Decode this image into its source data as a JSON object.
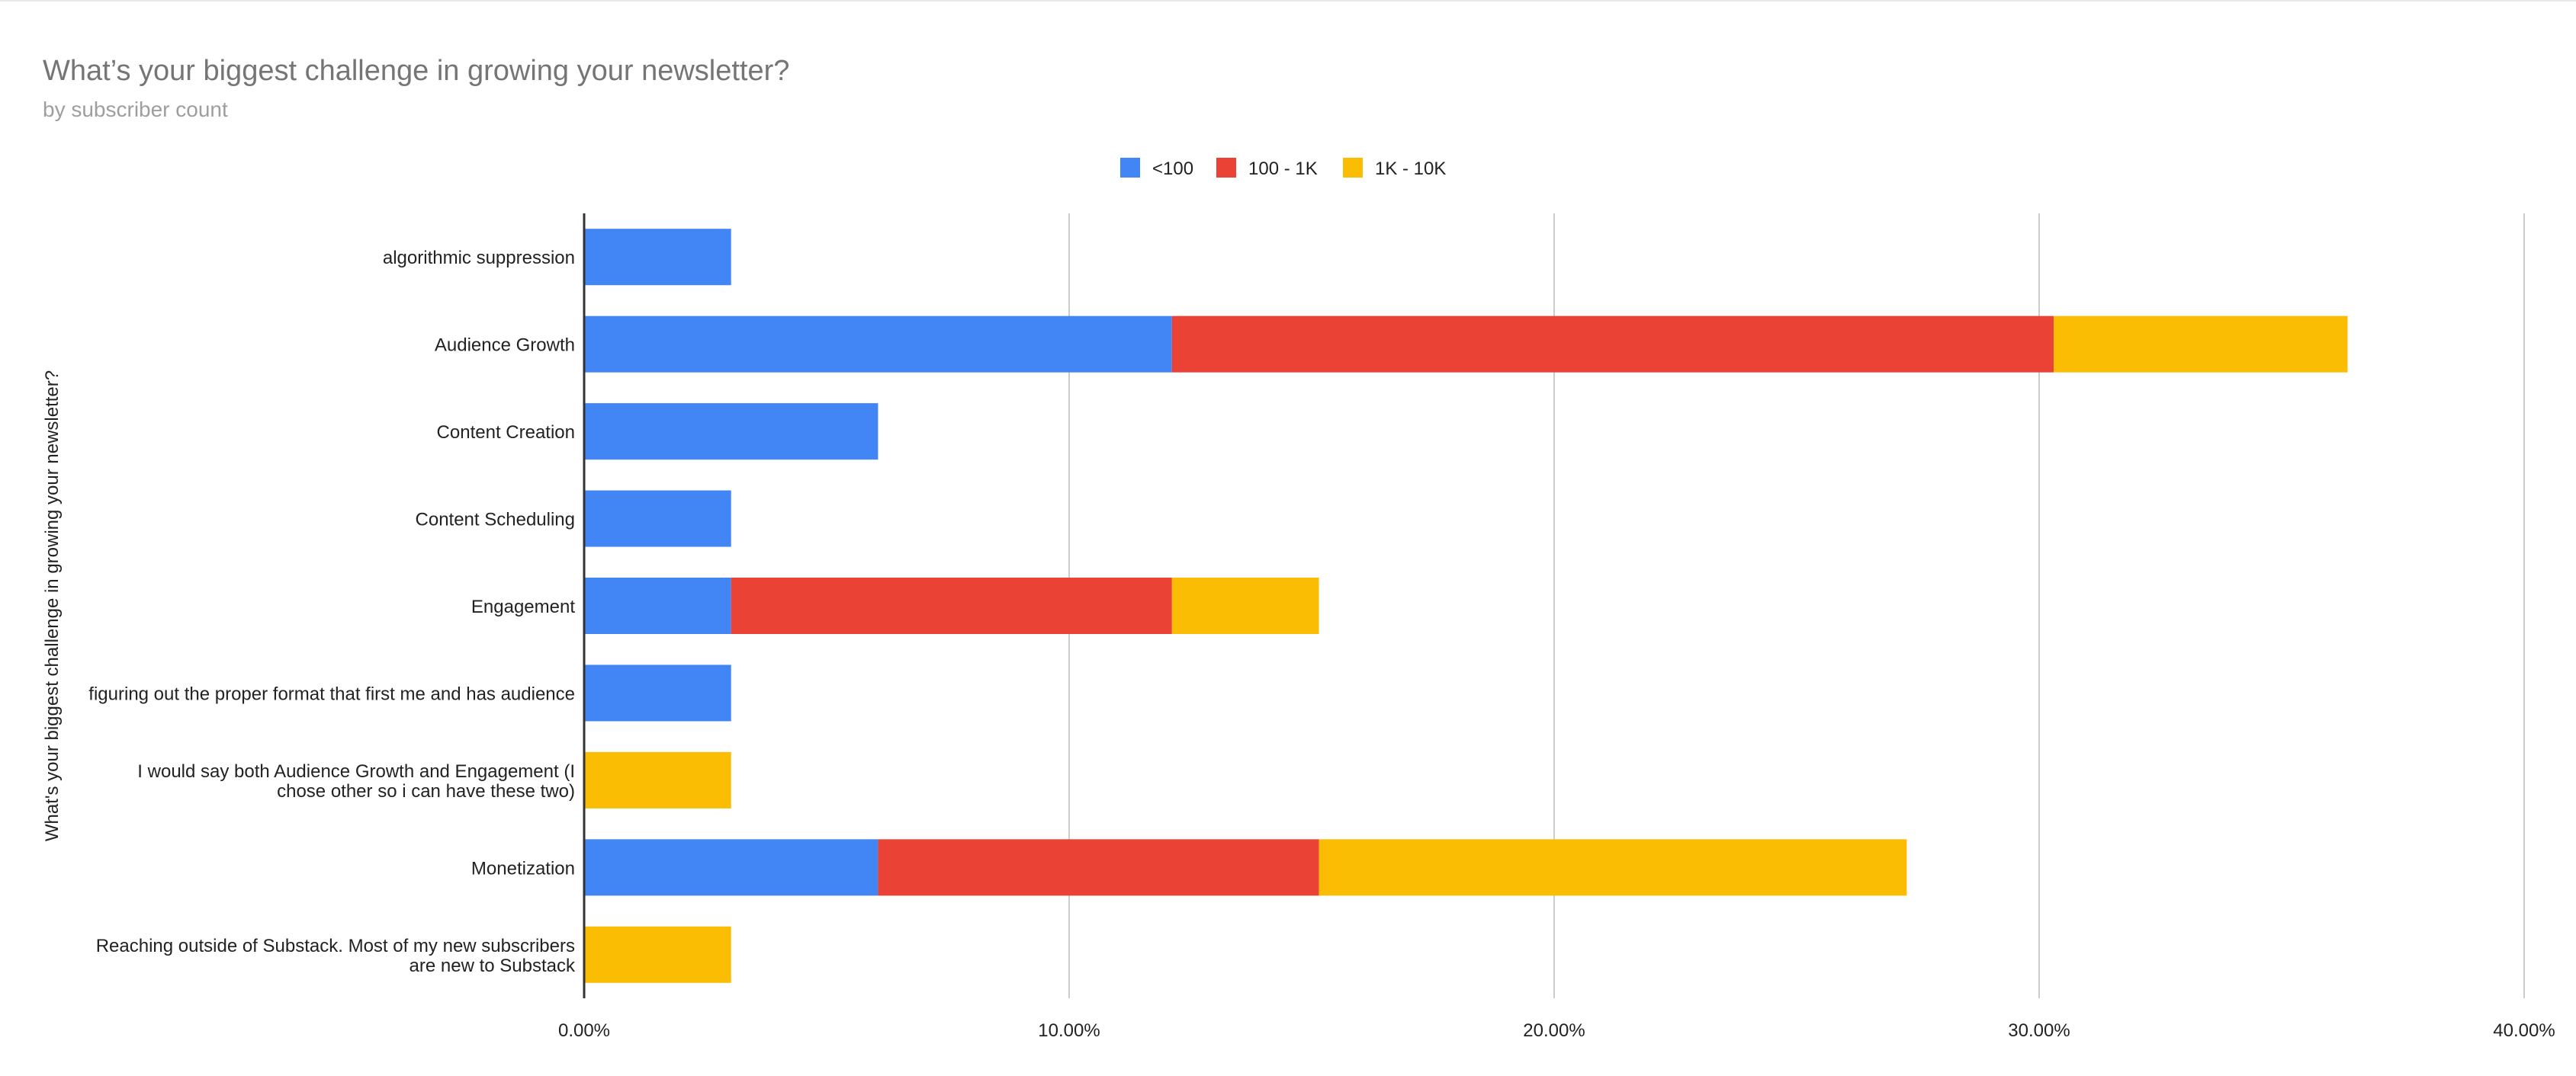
{
  "chart_data": {
    "type": "bar",
    "orientation": "horizontal",
    "stacked": true,
    "title": "What’s your biggest challenge in growing your newsletter?",
    "subtitle": "by subscriber count",
    "xlabel": "",
    "ylabel": "What's your biggest challenge in growing your newsletter?",
    "xlim": [
      0,
      40
    ],
    "x_ticks": [
      0,
      10,
      20,
      30,
      40
    ],
    "x_tick_labels": [
      "0.00%",
      "10.00%",
      "20.00%",
      "30.00%",
      "40.00%"
    ],
    "grid": true,
    "legend_position": "top-center",
    "categories": [
      [
        "algorithmic suppression"
      ],
      [
        "Audience Growth"
      ],
      [
        "Content Creation"
      ],
      [
        "Content Scheduling"
      ],
      [
        "Engagement"
      ],
      [
        "figuring out the proper format that first me and has audience"
      ],
      [
        "I would say both Audience Growth and Engagement (I",
        "chose other so i can have these two)"
      ],
      [
        "Monetization"
      ],
      [
        "Reaching outside of Substack. Most of my new subscribers",
        "are new to Substack"
      ]
    ],
    "series": [
      {
        "name": "<100",
        "color": "#4285F4",
        "values": [
          3.03,
          12.12,
          6.06,
          3.03,
          3.03,
          3.03,
          0,
          6.06,
          0
        ]
      },
      {
        "name": "100 - 1K",
        "color": "#EA4335",
        "values": [
          0,
          18.18,
          0,
          0,
          9.09,
          0,
          0,
          9.09,
          0
        ]
      },
      {
        "name": "1K - 10K",
        "color": "#FBBC04",
        "values": [
          0,
          6.06,
          0,
          0,
          3.03,
          0,
          3.03,
          12.12,
          3.03
        ]
      }
    ]
  }
}
